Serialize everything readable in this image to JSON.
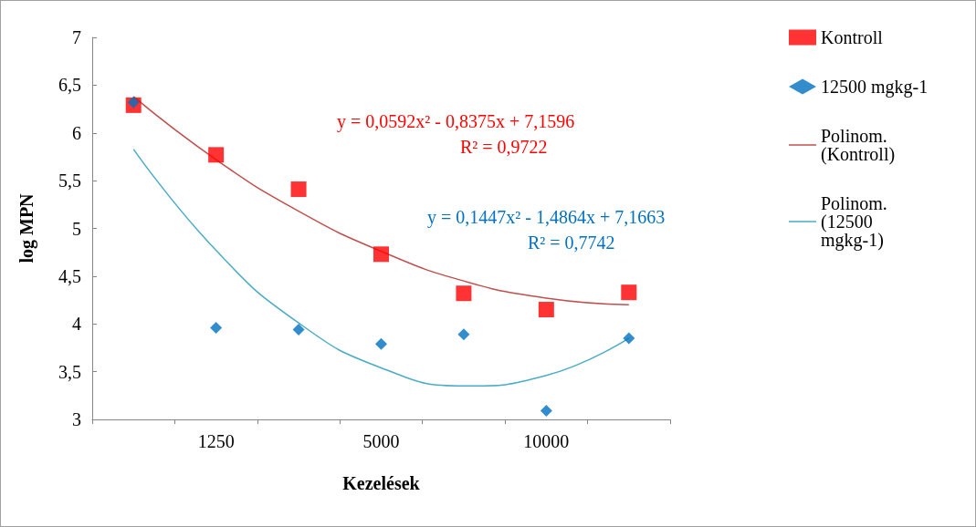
{
  "chart_data": {
    "type": "scatter",
    "xlabel": "Kezelések",
    "ylabel": "log MPN",
    "categories": [
      null,
      "1250",
      null,
      "5000",
      null,
      "10000",
      null
    ],
    "ylim": [
      3,
      7
    ],
    "yticks": [
      3,
      {
        "value": 3.5,
        "label": "3,5"
      },
      4,
      {
        "value": 4.5,
        "label": "4,5"
      },
      5,
      {
        "value": 5.5,
        "label": "5,5"
      },
      6,
      {
        "value": 6.5,
        "label": "6,5"
      },
      7
    ],
    "grid": false,
    "legend": "right",
    "series": [
      {
        "name": "Kontroll",
        "color": "#ff0000",
        "marker": "square",
        "values": [
          6.29,
          5.77,
          5.41,
          4.73,
          4.32,
          4.15,
          4.33
        ]
      },
      {
        "name": "12500 mgkg-1",
        "color": "#0070c0",
        "marker": "diamond",
        "values": [
          6.32,
          3.96,
          3.94,
          3.79,
          3.89,
          3.09,
          3.85
        ]
      },
      {
        "name": "Polinom. (Kontroll)",
        "type": "line",
        "color": "#c0504d",
        "marker": "none",
        "line_style": "solid",
        "values": [
          6.38,
          5.72,
          5.18,
          4.76,
          4.45,
          4.27,
          4.2
        ]
      },
      {
        "name": "Polinom. (12500 mgkg-1)",
        "type": "line",
        "color": "#4bacc6",
        "marker": "none",
        "line_style": "solid",
        "values": [
          5.83,
          4.77,
          4.01,
          3.54,
          3.35,
          3.46,
          3.85
        ]
      }
    ],
    "annotations": [
      "y = 0,0592x² - 0,8375x + 7,1596",
      "R² = 0,9722",
      "y = 0,1447x² - 1,4864x + 7,1663",
      "R² = 0,7742"
    ]
  }
}
